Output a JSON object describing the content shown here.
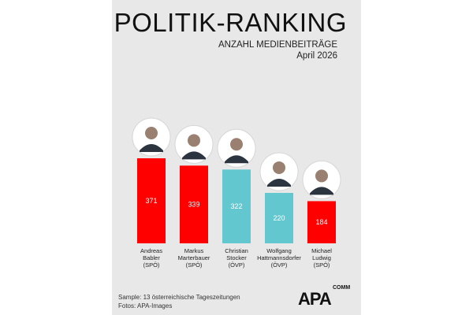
{
  "header": {
    "title": "POLITIK-RANKING",
    "subtitle": "ANZAHL MEDIENBEITRÄGE",
    "period": "April 2026"
  },
  "chart_data": {
    "type": "bar",
    "title": "POLITIK-RANKING",
    "subtitle": "ANZAHL MEDIENBEITRÄGE",
    "categories": [
      [
        "Andreas",
        "Babler",
        "(SPÖ)"
      ],
      [
        "Markus",
        "Marterbauer",
        "(SPÖ)"
      ],
      [
        "Christian",
        "Stocker",
        "(ÖVP)"
      ],
      [
        "Wolfgang",
        "Hattmannsdorfer",
        "(ÖVP)"
      ],
      [
        "Michael",
        "Ludwig",
        "(SPÖ)"
      ]
    ],
    "values": [
      371,
      339,
      322,
      220,
      184
    ],
    "value_labels": [
      "371",
      "339",
      "322",
      "220",
      "184"
    ],
    "parties": [
      "SPÖ",
      "SPÖ",
      "ÖVP",
      "ÖVP",
      "SPÖ"
    ],
    "ylim": [
      0,
      371
    ],
    "grid": false,
    "legend": "none"
  },
  "colors": {
    "SPÖ": "#ff0000",
    "ÖVP": "#63c7cf",
    "background": "#e8e8e8"
  },
  "icons": {
    "portrait": "person-portrait-icon"
  },
  "footer": {
    "sample": "Sample: 13 österreichische Tageszeitungen",
    "photos": "Fotos: APA-Images"
  },
  "logo": {
    "name": "APA",
    "suffix": "COMM"
  }
}
